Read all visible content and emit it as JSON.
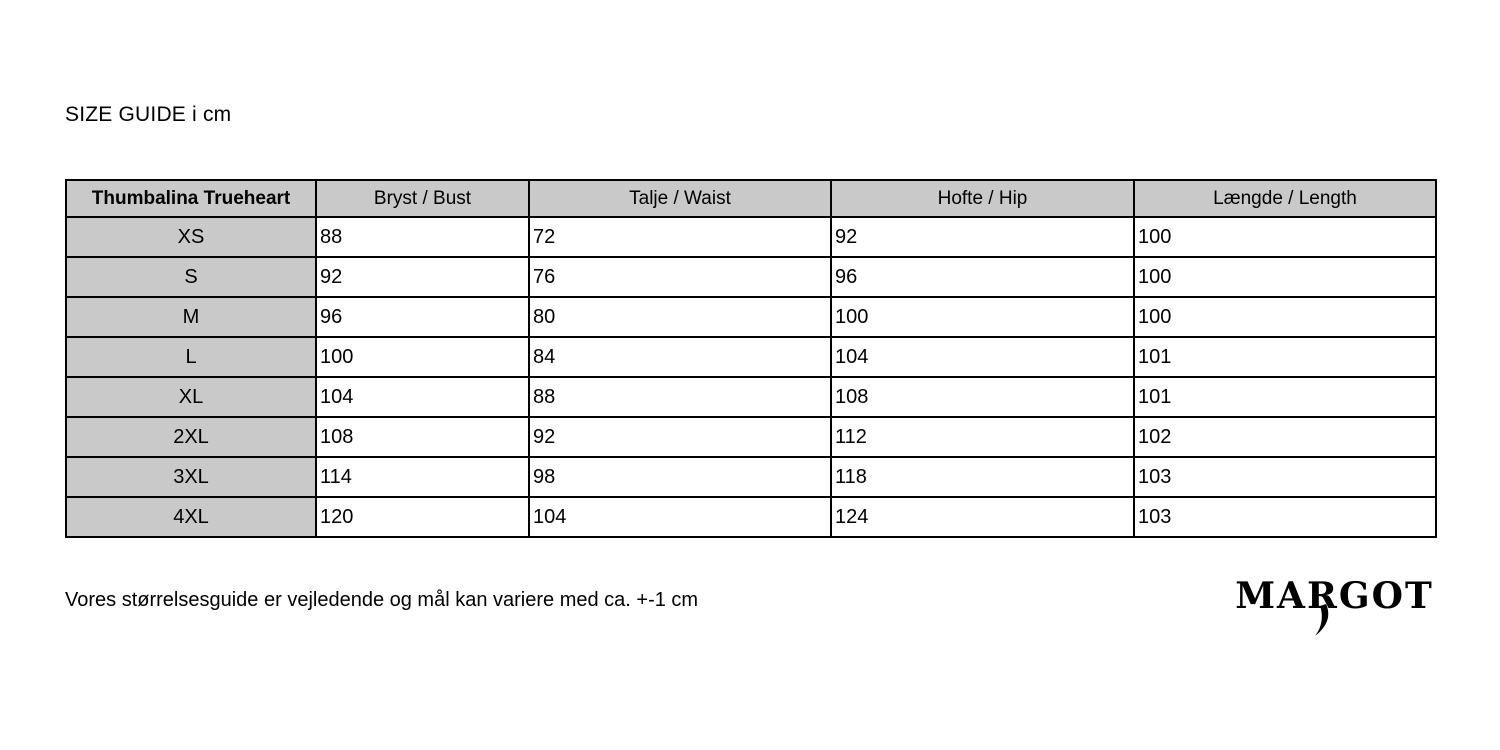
{
  "page": {
    "title": "SIZE GUIDE i cm",
    "note": "Vores størrelsesguide er vejledende og mål kan variere med ca. +-1 cm",
    "logo_text": "MARGOT"
  },
  "size_table": {
    "columns": [
      "Thumbalina Trueheart",
      "Bryst / Bust",
      "Talje / Waist",
      "Hofte / Hip",
      "Længde / Length"
    ],
    "rows": [
      {
        "size": "XS",
        "bust": "88",
        "waist": "72",
        "hip": "92",
        "length": "100"
      },
      {
        "size": "S",
        "bust": "92",
        "waist": "76",
        "hip": "96",
        "length": "100"
      },
      {
        "size": "M",
        "bust": "96",
        "waist": "80",
        "hip": "100",
        "length": "100"
      },
      {
        "size": "L",
        "bust": "100",
        "waist": "84",
        "hip": "104",
        "length": "101"
      },
      {
        "size": "XL",
        "bust": "104",
        "waist": "88",
        "hip": "108",
        "length": "101"
      },
      {
        "size": "2XL",
        "bust": "108",
        "waist": "92",
        "hip": "112",
        "length": "102"
      },
      {
        "size": "3XL",
        "bust": "114",
        "waist": "98",
        "hip": "118",
        "length": "103"
      },
      {
        "size": "4XL",
        "bust": "120",
        "waist": "104",
        "hip": "124",
        "length": "103"
      }
    ]
  },
  "colors": {
    "header_bg": "#c9c9c9",
    "border": "#000000",
    "text": "#000000",
    "background": "#ffffff"
  }
}
